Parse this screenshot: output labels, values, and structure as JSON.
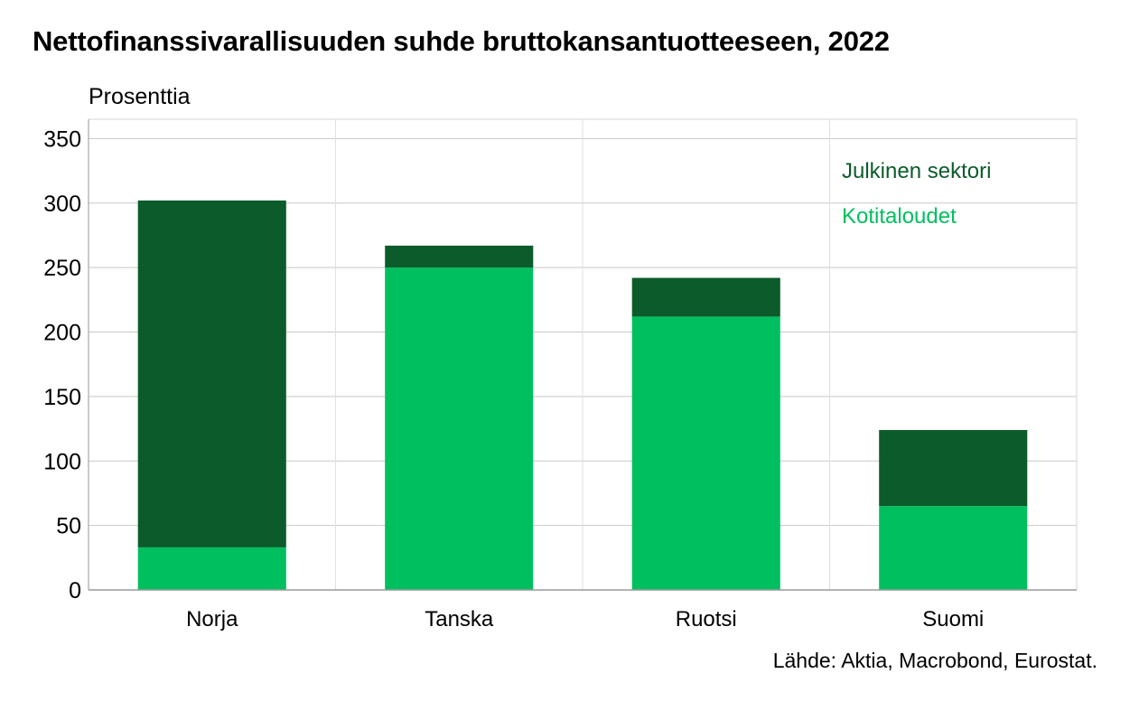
{
  "header": {
    "title": "Nettofinanssivarallisuuden suhde bruttokansantuotteeseen, 2022",
    "y_unit": "Prosenttia"
  },
  "footer": {
    "source": "Lähde: Aktia, Macrobond, Eurostat."
  },
  "chart_data": {
    "type": "bar",
    "stacked": true,
    "title": "Nettofinanssivarallisuuden suhde bruttokansantuotteeseen, 2022",
    "xlabel": "",
    "ylabel": "Prosenttia",
    "ylim": [
      0,
      365
    ],
    "yticks": [
      0,
      50,
      100,
      150,
      200,
      250,
      300,
      350
    ],
    "grid": true,
    "legend_position": "top-right",
    "categories": [
      "Norja",
      "Tanska",
      "Ruotsi",
      "Suomi"
    ],
    "series": [
      {
        "name": "Kotitaloudet",
        "color": "#00bf5f",
        "values": [
          33,
          250,
          212,
          65
        ]
      },
      {
        "name": "Julkinen sektori",
        "color": "#0b5c2a",
        "values": [
          269,
          17,
          30,
          59
        ]
      }
    ],
    "legend_order": [
      "Julkinen sektori",
      "Kotitaloudet"
    ]
  }
}
